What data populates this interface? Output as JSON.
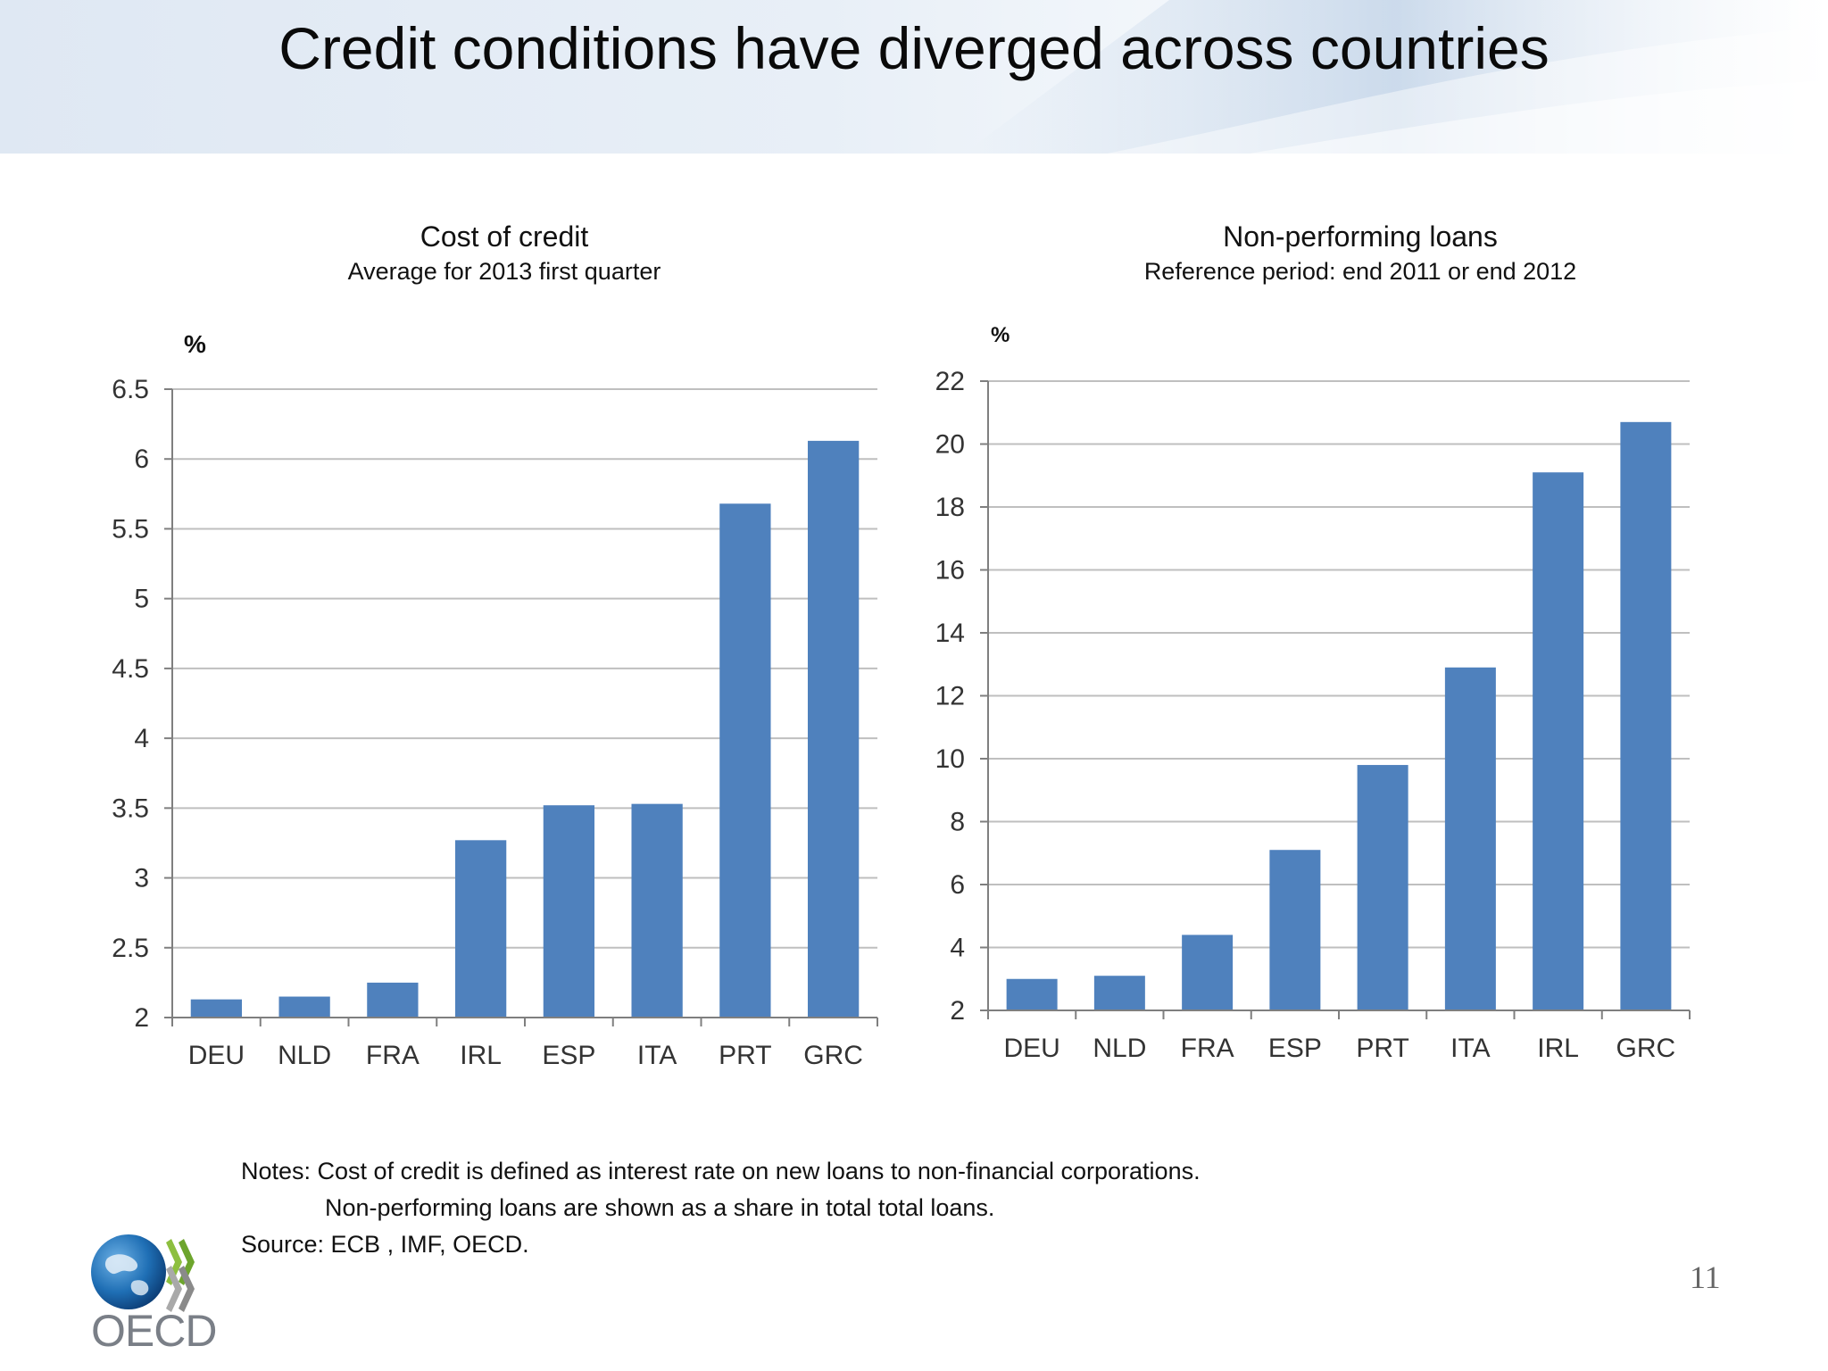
{
  "slide": {
    "title": "Credit conditions have diverged across countries",
    "page_number": "11",
    "notes_line1": "Notes: Cost of credit is defined as interest rate on new loans to non-financial corporations.",
    "notes_line2": "Non-performing loans are shown as a share in total total loans.",
    "source": "Source: ECB , IMF, OECD.",
    "logo_text": "OECD"
  },
  "colors": {
    "bar": "#4f81bd",
    "grid": "#bfbfbf",
    "axis": "#7f7f7f",
    "tick_text": "#333333"
  },
  "chart_data": [
    {
      "type": "bar",
      "title": "Cost of credit",
      "subtitle": "Average for 2013 first quarter",
      "ylabel": "%",
      "categories": [
        "DEU",
        "NLD",
        "FRA",
        "IRL",
        "ESP",
        "ITA",
        "PRT",
        "GRC"
      ],
      "values": [
        2.13,
        2.15,
        2.25,
        3.27,
        3.52,
        3.53,
        5.68,
        6.13
      ],
      "ylim": [
        2,
        6.5
      ],
      "yticks": [
        "2",
        "2.5",
        "3",
        "3.5",
        "4",
        "4.5",
        "5",
        "5.5",
        "6",
        "6.5"
      ],
      "grid": true,
      "legend": "none"
    },
    {
      "type": "bar",
      "title": "Non-performing loans",
      "subtitle": "Reference period: end 2011 or end 2012",
      "ylabel": "%",
      "categories": [
        "DEU",
        "NLD",
        "FRA",
        "ESP",
        "PRT",
        "ITA",
        "IRL",
        "GRC"
      ],
      "values": [
        3.0,
        3.1,
        4.4,
        7.1,
        9.8,
        12.9,
        19.1,
        20.7
      ],
      "ylim": [
        2,
        22
      ],
      "yticks": [
        "2",
        "4",
        "6",
        "8",
        "10",
        "12",
        "14",
        "16",
        "18",
        "20",
        "22"
      ],
      "grid": true,
      "legend": "none"
    }
  ]
}
